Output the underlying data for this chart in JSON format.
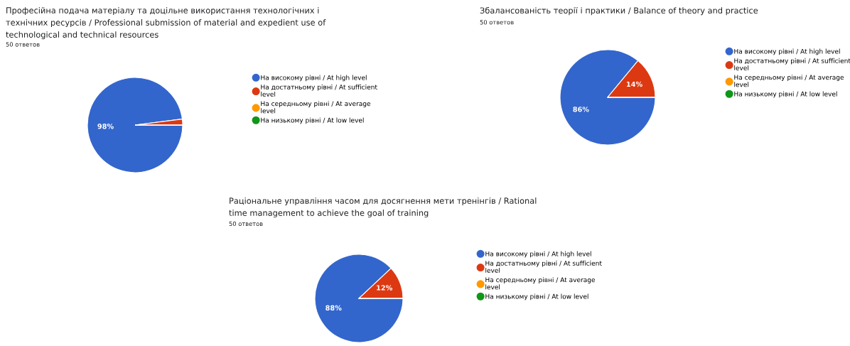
{
  "chart_data": [
    {
      "type": "pie",
      "title": "Професійна подача матеріалу та доцільне використання технологічних і технічних ресурсів / Professional submission of material and expedient use of technological and technical resources",
      "subtitle": "50 ответов",
      "categories": [
        "На високому рівні / At high level",
        "На достатньому рівні / At sufficient level",
        "На середньому рівні / At average level",
        "На низькому рівні / At low level"
      ],
      "values": [
        98,
        2,
        0,
        0
      ],
      "colors": [
        "#3366cc",
        "#dc3912",
        "#ff9900",
        "#109618"
      ],
      "value_labels": [
        "98%",
        null,
        null,
        null
      ],
      "legend": "right"
    },
    {
      "type": "pie",
      "title": "Збалансованість теорії і практики / Balance of theory and practice",
      "subtitle": "50 ответов",
      "categories": [
        "На високому рівні / At high level",
        "На достатньому рівні / At sufficient level",
        "На середньому рівні / At average level",
        "На низькому рівні / At low level"
      ],
      "values": [
        86,
        14,
        0,
        0
      ],
      "colors": [
        "#3366cc",
        "#dc3912",
        "#ff9900",
        "#109618"
      ],
      "value_labels": [
        "86%",
        "14%",
        null,
        null
      ],
      "legend": "right"
    },
    {
      "type": "pie",
      "title": "Раціональне управління часом для досягнення мети тренінгів / Rational time management to achieve the goal of training",
      "subtitle": "50 ответов",
      "categories": [
        "На високому рівні / At high level",
        "На достатньому рівні / At sufficient level",
        "На середньому рівні / At average level",
        "На низькому рівні / At low level"
      ],
      "values": [
        88,
        12,
        0,
        0
      ],
      "colors": [
        "#3366cc",
        "#dc3912",
        "#ff9900",
        "#109618"
      ],
      "value_labels": [
        "88%",
        "12%",
        null,
        null
      ],
      "legend": "right"
    }
  ]
}
